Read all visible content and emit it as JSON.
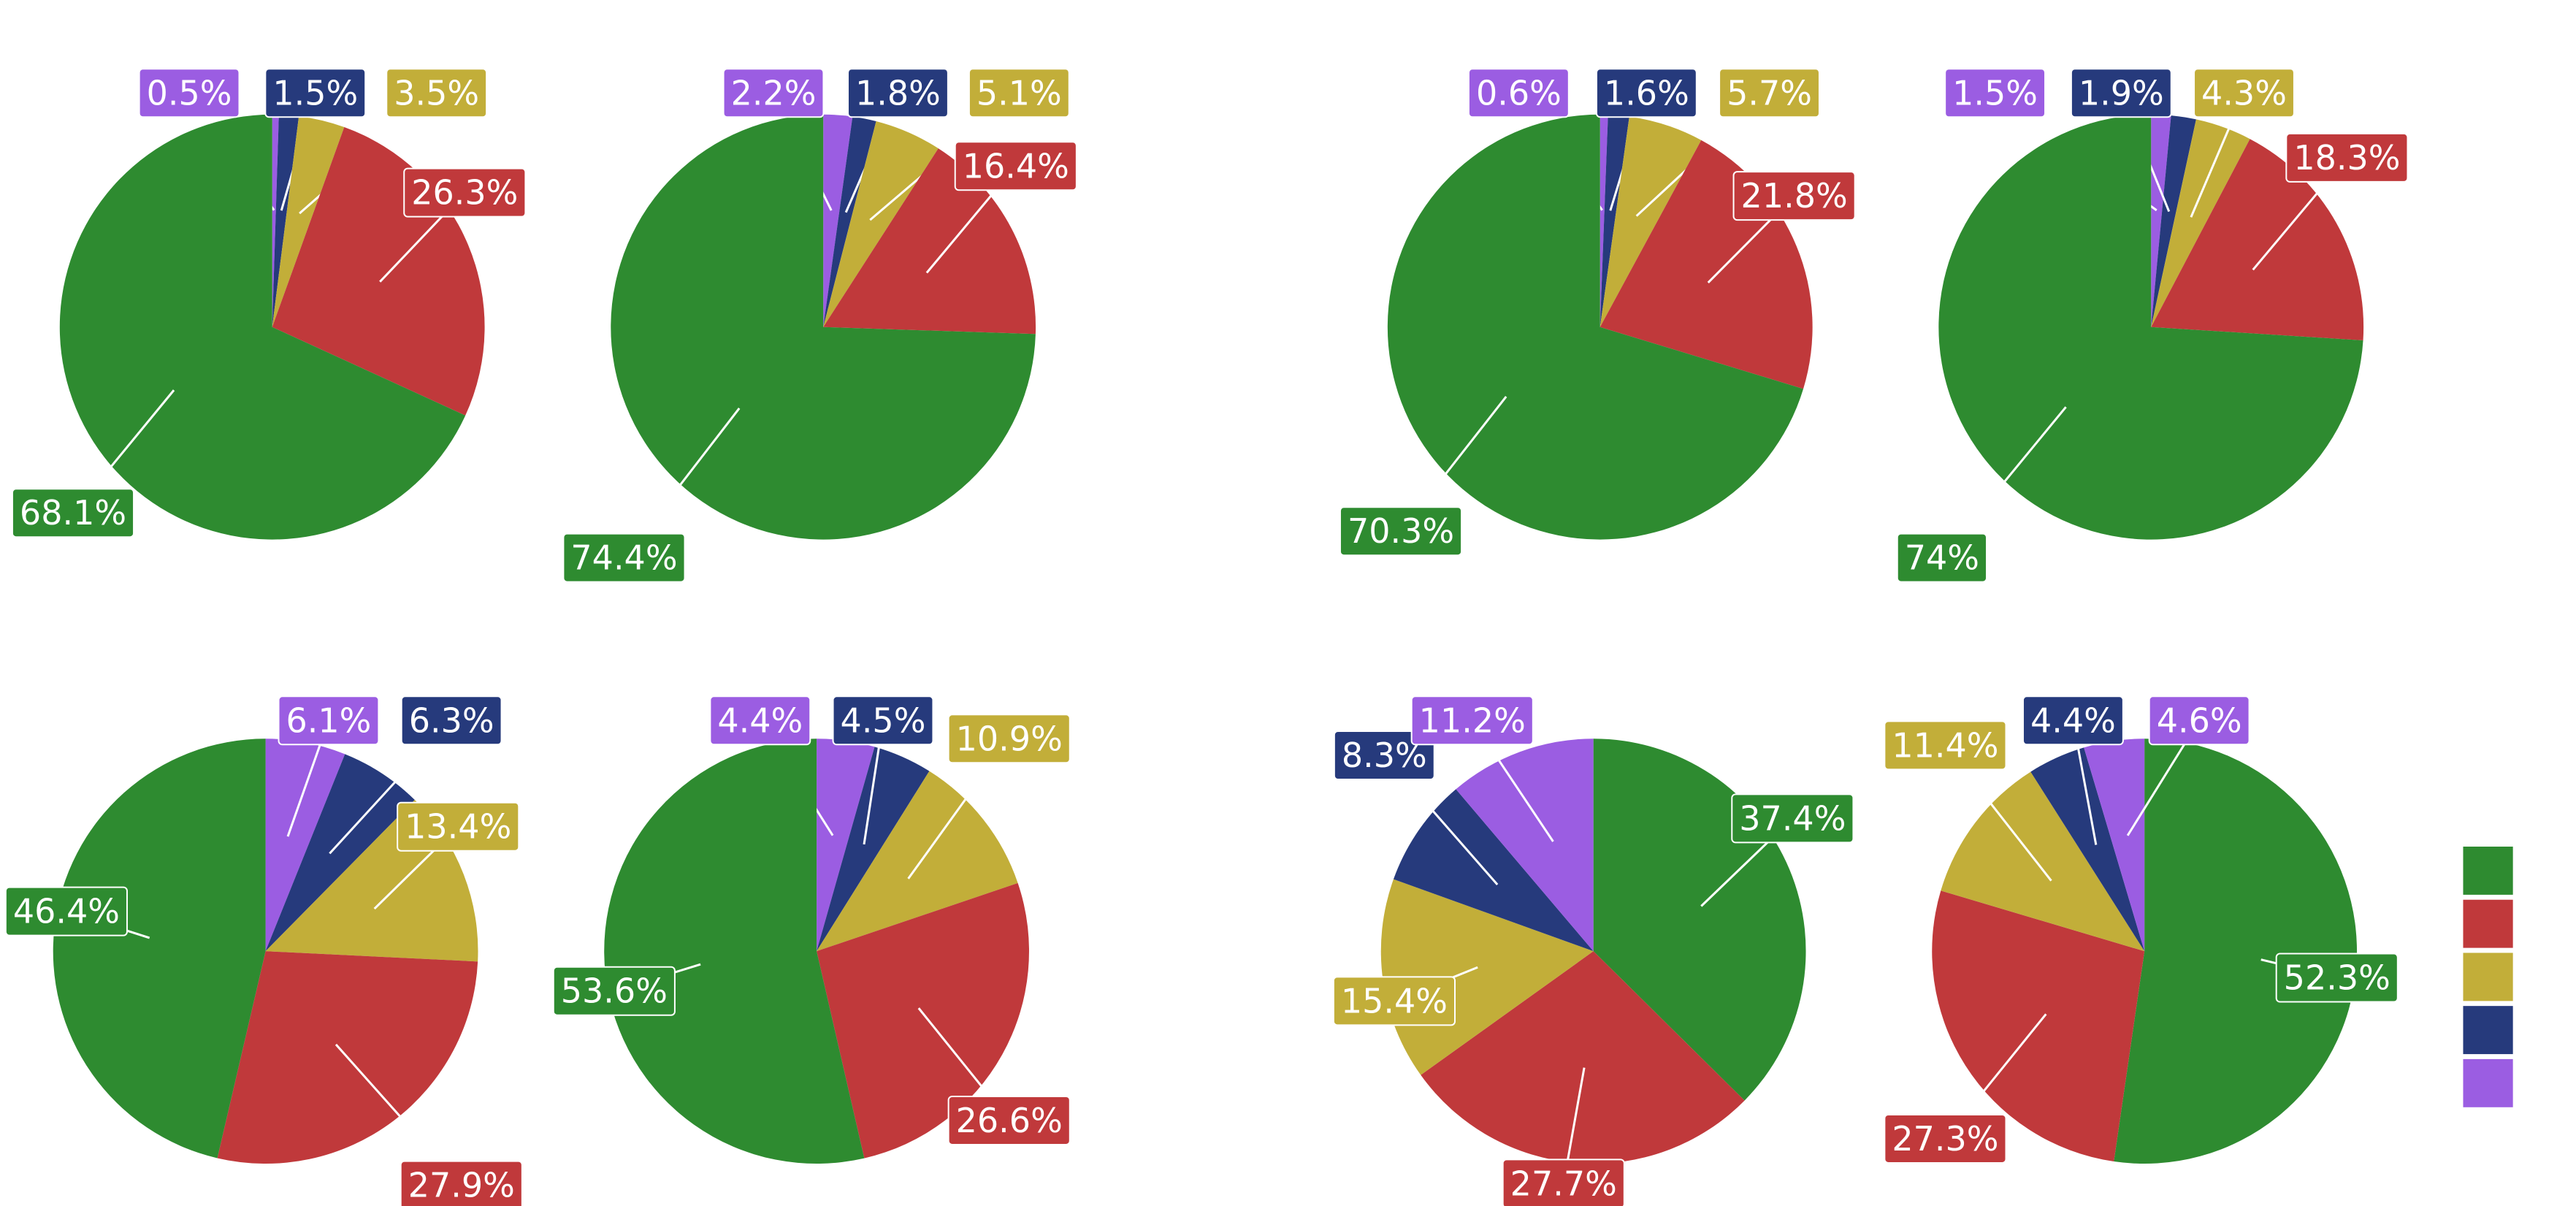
{
  "palette": {
    "green": "#2e8b30",
    "red": "#c0393b",
    "yellow": "#c2ae39",
    "navy": "#263a7c",
    "purple": "#9b5de2"
  },
  "chart_data": [
    {
      "type": "pie",
      "start_angle_deg": 0,
      "direction": "clockwise",
      "slices": [
        {
          "color": "purple",
          "value": 0.5,
          "label": "0.5%"
        },
        {
          "color": "navy",
          "value": 1.5,
          "label": "1.5%"
        },
        {
          "color": "yellow",
          "value": 3.5,
          "label": "3.5%"
        },
        {
          "color": "red",
          "value": 26.3,
          "label": "26.3%"
        },
        {
          "color": "green",
          "value": 68.1,
          "label": "68.1%"
        }
      ]
    },
    {
      "type": "pie",
      "start_angle_deg": 0,
      "direction": "clockwise",
      "slices": [
        {
          "color": "purple",
          "value": 2.2,
          "label": "2.2%"
        },
        {
          "color": "navy",
          "value": 1.8,
          "label": "1.8%"
        },
        {
          "color": "yellow",
          "value": 5.1,
          "label": "5.1%"
        },
        {
          "color": "red",
          "value": 16.4,
          "label": "16.4%"
        },
        {
          "color": "green",
          "value": 74.4,
          "label": "74.4%"
        }
      ]
    },
    {
      "type": "pie",
      "start_angle_deg": 0,
      "direction": "clockwise",
      "slices": [
        {
          "color": "purple",
          "value": 0.6,
          "label": "0.6%"
        },
        {
          "color": "navy",
          "value": 1.6,
          "label": "1.6%"
        },
        {
          "color": "yellow",
          "value": 5.7,
          "label": "5.7%"
        },
        {
          "color": "red",
          "value": 21.8,
          "label": "21.8%"
        },
        {
          "color": "green",
          "value": 70.3,
          "label": "70.3%"
        }
      ]
    },
    {
      "type": "pie",
      "start_angle_deg": 0,
      "direction": "clockwise",
      "slices": [
        {
          "color": "purple",
          "value": 1.5,
          "label": "1.5%"
        },
        {
          "color": "navy",
          "value": 1.9,
          "label": "1.9%"
        },
        {
          "color": "yellow",
          "value": 4.3,
          "label": "4.3%"
        },
        {
          "color": "red",
          "value": 18.3,
          "label": "18.3%"
        },
        {
          "color": "green",
          "value": 74.0,
          "label": "74%"
        }
      ]
    },
    {
      "type": "pie",
      "start_angle_deg": 0,
      "direction": "clockwise",
      "slices": [
        {
          "color": "purple",
          "value": 6.1,
          "label": "6.1%"
        },
        {
          "color": "navy",
          "value": 6.3,
          "label": "6.3%"
        },
        {
          "color": "yellow",
          "value": 13.4,
          "label": "13.4%"
        },
        {
          "color": "red",
          "value": 27.9,
          "label": "27.9%"
        },
        {
          "color": "green",
          "value": 46.4,
          "label": "46.4%"
        }
      ]
    },
    {
      "type": "pie",
      "start_angle_deg": 0,
      "direction": "clockwise",
      "slices": [
        {
          "color": "purple",
          "value": 4.4,
          "label": "4.4%"
        },
        {
          "color": "navy",
          "value": 4.5,
          "label": "4.5%"
        },
        {
          "color": "yellow",
          "value": 10.9,
          "label": "10.9%"
        },
        {
          "color": "red",
          "value": 26.6,
          "label": "26.6%"
        },
        {
          "color": "green",
          "value": 53.6,
          "label": "53.6%"
        }
      ]
    },
    {
      "type": "pie",
      "start_angle_deg": 0,
      "direction": "clockwise",
      "slices": [
        {
          "color": "green",
          "value": 37.4,
          "label": "37.4%"
        },
        {
          "color": "red",
          "value": 27.7,
          "label": "27.7%"
        },
        {
          "color": "yellow",
          "value": 15.4,
          "label": "15.4%"
        },
        {
          "color": "navy",
          "value": 8.3,
          "label": "8.3%"
        },
        {
          "color": "purple",
          "value": 11.2,
          "label": "11.2%"
        }
      ]
    },
    {
      "type": "pie",
      "start_angle_deg": 0,
      "direction": "clockwise",
      "slices": [
        {
          "color": "green",
          "value": 52.3,
          "label": "52.3%"
        },
        {
          "color": "red",
          "value": 27.3,
          "label": "27.3%"
        },
        {
          "color": "yellow",
          "value": 11.4,
          "label": "11.4%"
        },
        {
          "color": "navy",
          "value": 4.4,
          "label": "4.4%"
        },
        {
          "color": "purple",
          "value": 4.6,
          "label": "4.6%"
        }
      ]
    }
  ],
  "legend": {
    "placement": "right",
    "swatches": [
      "green",
      "red",
      "yellow",
      "navy",
      "purple"
    ]
  }
}
